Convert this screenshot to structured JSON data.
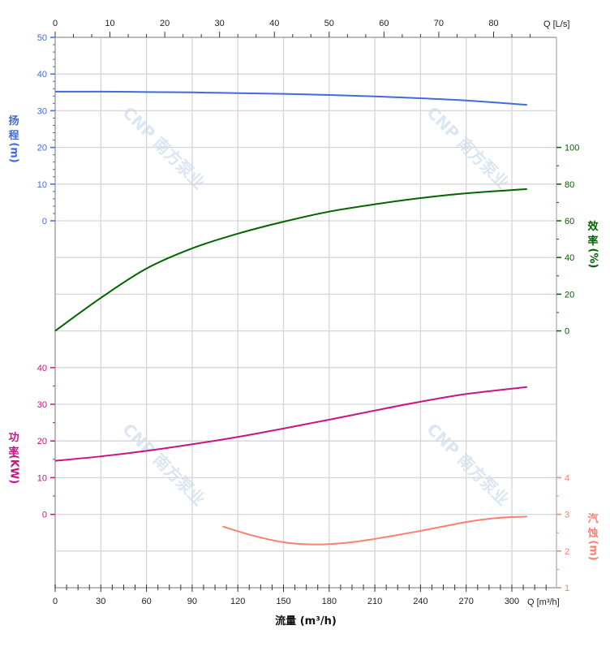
{
  "chart_data": {
    "type": "line",
    "xlabel": "流量 (m³/h)",
    "x_unit_bottom": "Q [m³/h]",
    "x_unit_top": "Q [L/s]",
    "x_ticks_bottom": [
      0,
      30,
      60,
      90,
      120,
      150,
      180,
      210,
      240,
      270,
      300
    ],
    "x_ticks_top": [
      0,
      10,
      20,
      30,
      40,
      50,
      60,
      70,
      80
    ],
    "xlim": [
      0,
      329
    ],
    "grid": true,
    "watermark": "CNP 南方泵业",
    "axes": {
      "head": {
        "label": [
          "扬",
          "程",
          "(m)"
        ],
        "ticks": [
          0,
          10,
          20,
          30,
          40,
          50
        ],
        "color": "#4169e1"
      },
      "efficiency": {
        "label": [
          "效",
          "率",
          "(%)"
        ],
        "ticks": [
          0,
          20,
          40,
          60,
          80,
          100
        ],
        "color": "#006400"
      },
      "power": {
        "label": [
          "功",
          "率",
          "(KW)"
        ],
        "ticks": [
          0,
          10,
          20,
          30,
          40
        ],
        "color": "#c71585"
      },
      "npsh": {
        "label": [
          "汽",
          "蚀",
          "(m)"
        ],
        "ticks": [
          1,
          2,
          3,
          4
        ],
        "color": "#fa8072"
      }
    },
    "series": [
      {
        "axis": "head",
        "x": [
          0,
          30,
          60,
          90,
          120,
          150,
          180,
          210,
          240,
          270,
          310
        ],
        "y": [
          35.2,
          35.2,
          35.1,
          35.0,
          34.8,
          34.6,
          34.3,
          33.9,
          33.4,
          32.8,
          31.6
        ]
      },
      {
        "axis": "efficiency",
        "x": [
          0,
          30,
          60,
          90,
          120,
          150,
          180,
          210,
          240,
          270,
          310
        ],
        "y": [
          0,
          18,
          34,
          45,
          53,
          59.5,
          65,
          69,
          72.4,
          75,
          77.3
        ]
      },
      {
        "axis": "power",
        "x": [
          0,
          30,
          60,
          90,
          120,
          150,
          180,
          210,
          240,
          270,
          310
        ],
        "y": [
          14.6,
          15.8,
          17.3,
          19.1,
          21.1,
          23.4,
          25.8,
          28.3,
          30.7,
          32.8,
          34.7
        ]
      },
      {
        "axis": "npsh",
        "x": [
          110,
          130,
          150,
          170,
          190,
          210,
          240,
          270,
          290,
          310
        ],
        "y": [
          2.67,
          2.42,
          2.24,
          2.18,
          2.22,
          2.33,
          2.55,
          2.79,
          2.9,
          2.94
        ]
      }
    ]
  }
}
